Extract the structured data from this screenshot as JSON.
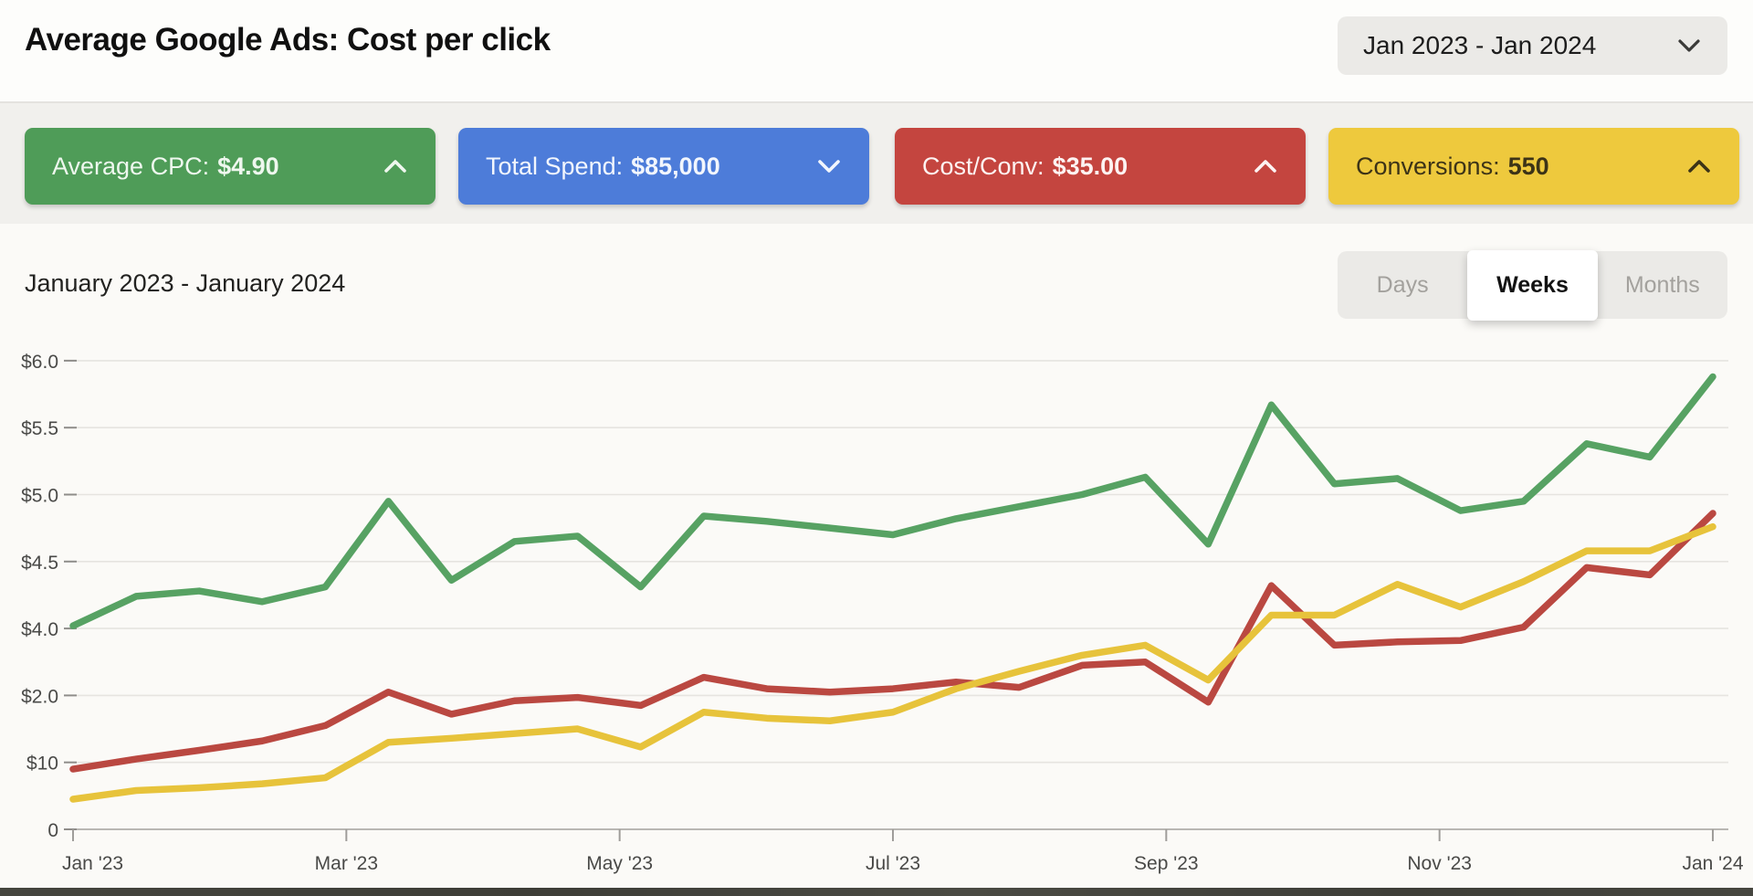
{
  "header": {
    "title": "Average Google Ads: Cost per click",
    "date_range": "Jan 2023 - Jan 2024"
  },
  "stat_buttons": [
    {
      "id": "average-cpc",
      "label": "Average CPC:",
      "value": "$4.90",
      "bg": "#4f9c58",
      "fg": "#eef7ee",
      "chevron": "up"
    },
    {
      "id": "total-spend",
      "label": "Total Spend:",
      "value": "$85,000",
      "bg": "#4d7cd9",
      "fg": "#f2f6fd",
      "chevron": "down"
    },
    {
      "id": "cost-conv",
      "label": "Cost/Conv:",
      "value": "$35.00",
      "bg": "#c4453f",
      "fg": "#fdf3f2",
      "chevron": "up"
    },
    {
      "id": "conversions",
      "label": "Conversions:",
      "value": "550",
      "bg": "#eec93d",
      "fg": "#3c3317",
      "chevron": "up"
    }
  ],
  "chart_header": {
    "subtitle": "January 2023 - January 2024",
    "granularity_options": [
      "Days",
      "Weeks",
      "Months"
    ],
    "active_granularity": "Weeks"
  },
  "chart_data": {
    "type": "line",
    "title": "Average Google Ads: Cost per click",
    "x_axis": {
      "tick_labels": [
        "Jan '23",
        "Mar '23",
        "May '23",
        "Jul '23",
        "Sep '23",
        "Nov '23",
        "Jan '24"
      ],
      "points_note": "27 evenly spaced points spanning Jan 2023 - Jan 2024 (weekly granularity selected)"
    },
    "y_axis": {
      "tick_labels_top_to_bottom": [
        "$6.0",
        "$5.5",
        "$5.0",
        "$4.5",
        "$4.0",
        "$2.0",
        "$10",
        "0"
      ],
      "units_note": "series values are in gridline units: 0 = bottom axis line, 7 = top '$6.0' gridline; gridlines are evenly spaced even though the printed labels are non-uniform",
      "grid": true
    },
    "legend": "none",
    "series": [
      {
        "name": "average-cpc-green",
        "color": "#57a263",
        "values_gridline_units": [
          3.04,
          3.48,
          3.56,
          3.4,
          3.62,
          4.9,
          3.72,
          4.3,
          4.38,
          3.62,
          4.68,
          4.6,
          4.5,
          4.4,
          4.64,
          4.82,
          5.0,
          5.26,
          4.26,
          6.34,
          5.16,
          5.24,
          4.76,
          4.9,
          5.76,
          5.56,
          6.76
        ],
        "approx_dollar_values": [
          4.02,
          4.24,
          4.28,
          4.2,
          4.31,
          4.95,
          4.36,
          4.65,
          4.69,
          4.31,
          4.84,
          4.8,
          4.75,
          4.7,
          4.82,
          4.91,
          5.0,
          5.13,
          4.63,
          5.67,
          5.08,
          5.12,
          4.88,
          4.95,
          5.38,
          5.28,
          5.88
        ]
      },
      {
        "name": "cost-red",
        "color": "#ba4841",
        "values_gridline_units": [
          0.9,
          1.05,
          1.18,
          1.32,
          1.55,
          2.05,
          1.72,
          1.92,
          1.97,
          1.85,
          2.27,
          2.1,
          2.05,
          2.1,
          2.2,
          2.12,
          2.45,
          2.5,
          1.9,
          3.64,
          2.75,
          2.8,
          2.82,
          3.02,
          3.91,
          3.8,
          4.72
        ]
      },
      {
        "name": "conversions-yellow",
        "color": "#e7c33b",
        "values_gridline_units": [
          0.45,
          0.58,
          0.62,
          0.68,
          0.77,
          1.3,
          1.36,
          1.43,
          1.5,
          1.23,
          1.75,
          1.66,
          1.62,
          1.75,
          2.1,
          2.36,
          2.6,
          2.75,
          2.23,
          3.2,
          3.2,
          3.66,
          3.32,
          3.7,
          4.16,
          4.16,
          4.52
        ]
      }
    ]
  },
  "colors": {
    "header_bg": "#fdfdfb",
    "strip_bg": "#f1f0ed",
    "chart_bg": "#fbfaf7",
    "control_bg": "#ebeae7",
    "gridline": "#e6e4e0",
    "axis_line": "#b9b7b3",
    "axis_text": "#4a4a48",
    "inactive_text": "#a3a19d"
  }
}
